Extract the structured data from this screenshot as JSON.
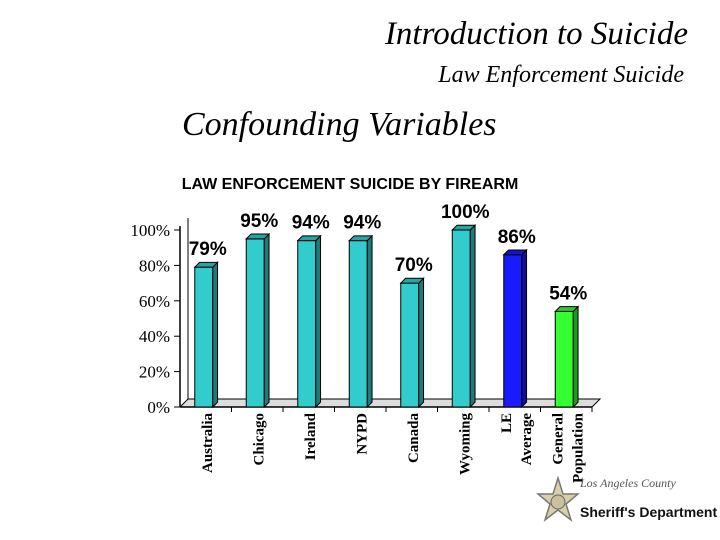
{
  "slide": {
    "title": "Introduction to Suicide",
    "subtitle": "Law Enforcement Suicide",
    "heading": "Confounding Variables"
  },
  "logo": {
    "county": "Los Angeles County",
    "department": "Sheriff's Department",
    "icon": "star-badge-icon"
  },
  "chart_data": {
    "type": "bar",
    "title": "LAW ENFORCEMENT SUICIDE BY FIREARM",
    "xlabel": "",
    "ylabel": "",
    "ylim": [
      0,
      100
    ],
    "yticks": [
      "0%",
      "20%",
      "40%",
      "60%",
      "80%",
      "100%"
    ],
    "ytick_values": [
      0,
      20,
      40,
      60,
      80,
      100
    ],
    "grid": false,
    "categories": [
      "Australia",
      "Chicago",
      "Ireland",
      "NYPD",
      "Canada",
      "Wyoming",
      "LE Average",
      "General Population"
    ],
    "values": [
      79,
      95,
      94,
      94,
      70,
      100,
      86,
      54
    ],
    "labels": [
      "79%",
      "95%",
      "94%",
      "94%",
      "70%",
      "100%",
      "86%",
      "54%"
    ],
    "colors": [
      "#33cccc",
      "#33cccc",
      "#33cccc",
      "#33cccc",
      "#33cccc",
      "#33cccc",
      "#1a1aff",
      "#33ff33"
    ]
  }
}
